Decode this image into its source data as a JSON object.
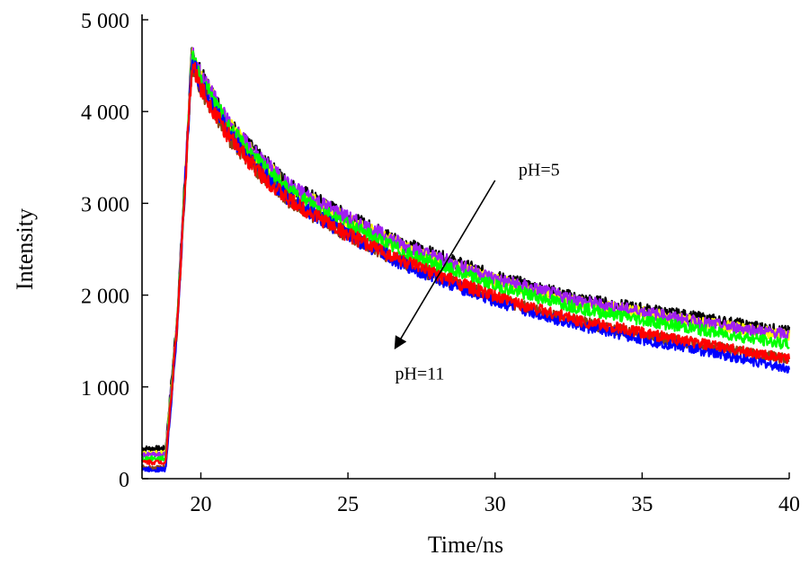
{
  "chart_data": {
    "type": "line",
    "xlabel": "Time/ns",
    "ylabel": "Intensity",
    "xlim": [
      18,
      40
    ],
    "ylim": [
      0,
      5000
    ],
    "x_ticks": [
      20,
      25,
      30,
      35,
      40
    ],
    "x_tick_labels": [
      "20",
      "25",
      "30",
      "35",
      "40"
    ],
    "y_ticks": [
      0,
      1000,
      2000,
      3000,
      4000,
      5000
    ],
    "y_tick_labels": [
      "0",
      "1 000",
      "2 000",
      "3 000",
      "4 000",
      "5 000"
    ],
    "grid": false,
    "legend": "none",
    "x": [
      18,
      18.8,
      19.2,
      19.7,
      20,
      21,
      22,
      23,
      25,
      27,
      30,
      33,
      35,
      37,
      40
    ],
    "series": [
      {
        "color": "#000000",
        "values": [
          330,
          330,
          1800,
          4650,
          4400,
          3850,
          3500,
          3200,
          2850,
          2550,
          2200,
          1950,
          1850,
          1750,
          1600
        ]
      },
      {
        "color": "#ffff00",
        "values": [
          280,
          280,
          1750,
          4600,
          4380,
          3830,
          3470,
          3170,
          2810,
          2510,
          2160,
          1910,
          1810,
          1700,
          1560
        ]
      },
      {
        "color": "#a020f0",
        "values": [
          260,
          260,
          1750,
          4620,
          4390,
          3840,
          3490,
          3190,
          2840,
          2530,
          2180,
          1930,
          1820,
          1700,
          1570
        ]
      },
      {
        "color": "#00ff00",
        "values": [
          220,
          220,
          1720,
          4580,
          4350,
          3800,
          3430,
          3130,
          2760,
          2450,
          2100,
          1850,
          1730,
          1620,
          1460
        ]
      },
      {
        "color": "#8b4513",
        "values": [
          120,
          120,
          1680,
          4500,
          4250,
          3700,
          3330,
          3030,
          2650,
          2330,
          1960,
          1700,
          1570,
          1460,
          1300
        ]
      },
      {
        "color": "#0000ff",
        "values": [
          100,
          100,
          1650,
          4560,
          4280,
          3740,
          3360,
          3050,
          2650,
          2320,
          1930,
          1660,
          1520,
          1400,
          1200
        ]
      },
      {
        "color": "#ff0000",
        "values": [
          180,
          180,
          1700,
          4520,
          4260,
          3700,
          3330,
          3030,
          2660,
          2350,
          1980,
          1710,
          1590,
          1470,
          1300
        ]
      }
    ],
    "annotations": [
      {
        "text": "pH=5",
        "x": 30.8,
        "y": 3300
      },
      {
        "text": "pH=11",
        "x": 26.6,
        "y": 1080
      }
    ],
    "arrow": {
      "from": [
        30.0,
        3250
      ],
      "to": [
        26.6,
        1420
      ]
    }
  }
}
